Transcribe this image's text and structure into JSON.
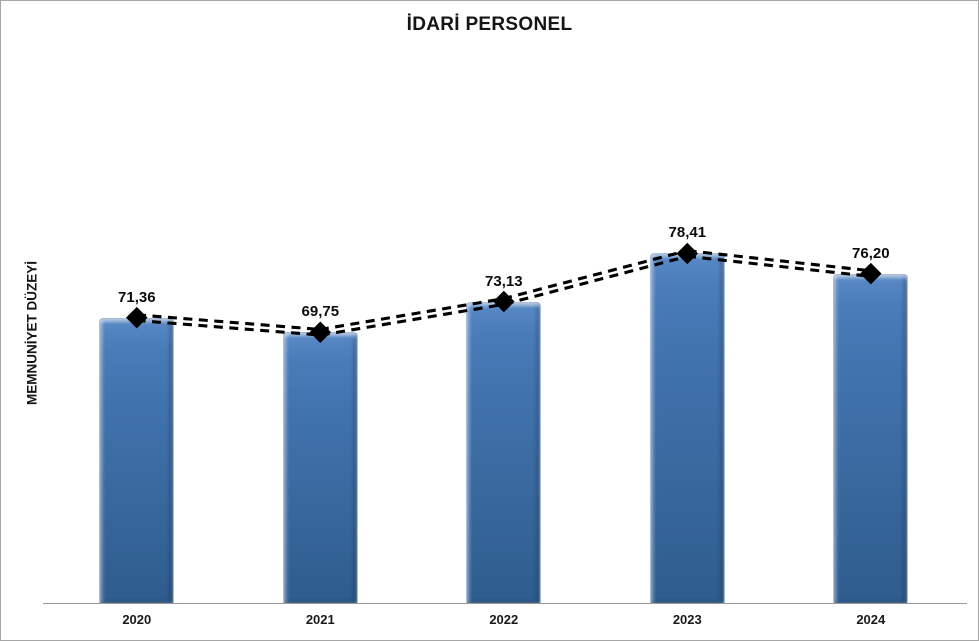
{
  "frame": {
    "background": "#ffffff",
    "border_color": "#a6a6a6"
  },
  "chart_data": {
    "type": "bar",
    "title": "İDARİ PERSONEL",
    "xlabel": "",
    "ylabel": "MEMNUNİYET DÜZEYİ",
    "categories": [
      "2020",
      "2021",
      "2022",
      "2023",
      "2024"
    ],
    "series": [
      {
        "name": "memnuniyet-bars",
        "type": "bar",
        "values": [
          71.36,
          69.75,
          73.13,
          78.41,
          76.2
        ]
      },
      {
        "name": "memnuniyet-line",
        "type": "line",
        "values": [
          71.36,
          69.75,
          73.13,
          78.41,
          76.2
        ]
      }
    ],
    "data_labels": [
      "71,36",
      "69,75",
      "73,13",
      "78,41",
      "76,20"
    ],
    "ylim": [
      40,
      100
    ],
    "grid": false,
    "legend_position": "none",
    "bar_color_top": "#5989c7",
    "bar_color_bottom": "#2e5c8e",
    "bar_edge_color": "#a9bedd",
    "line_color": "#000000",
    "line_style": "double-dashed",
    "marker": "diamond",
    "marker_color": "#000000",
    "axis_line_color": "#9b9b9b",
    "title_color": "#151515",
    "label_color": "#0d0d0d"
  }
}
